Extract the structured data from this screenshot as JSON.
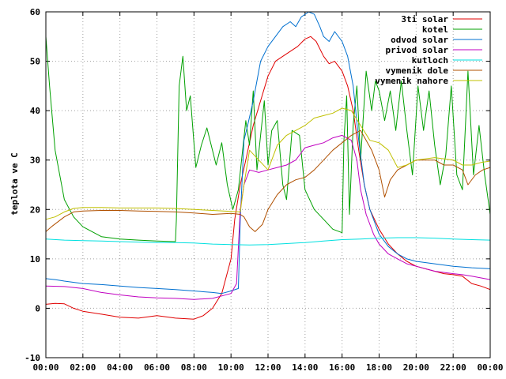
{
  "chart_data": {
    "type": "line",
    "title": "",
    "xlabel": "",
    "ylabel": "teplota ve C",
    "xlim": [
      0,
      24
    ],
    "ylim": [
      -10,
      60
    ],
    "x_ticks": [
      0,
      2,
      4,
      6,
      8,
      10,
      12,
      14,
      16,
      18,
      20,
      22,
      24
    ],
    "x_tick_labels": [
      "00:00",
      "02:00",
      "04:00",
      "06:00",
      "08:00",
      "10:00",
      "12:00",
      "14:00",
      "16:00",
      "18:00",
      "20:00",
      "22:00",
      "00:00"
    ],
    "y_ticks": [
      -10,
      0,
      10,
      20,
      30,
      40,
      50,
      60
    ],
    "y_tick_labels": [
      "-10",
      "0",
      "10",
      "20",
      "30",
      "40",
      "50",
      "60"
    ],
    "grid": true,
    "legend_position": "top-right",
    "series": [
      {
        "name": "3ti solar",
        "color": "#e00000",
        "points": [
          [
            0,
            0.8
          ],
          [
            0.5,
            1
          ],
          [
            1,
            0.9
          ],
          [
            1.5,
            0
          ],
          [
            2,
            -0.6
          ],
          [
            3,
            -1.2
          ],
          [
            4,
            -1.8
          ],
          [
            5,
            -2
          ],
          [
            6,
            -1.5
          ],
          [
            7,
            -2
          ],
          [
            8,
            -2.2
          ],
          [
            8.5,
            -1.5
          ],
          [
            9,
            0
          ],
          [
            9.5,
            3
          ],
          [
            10,
            10
          ],
          [
            10.2,
            18
          ],
          [
            10.5,
            25
          ],
          [
            10.8,
            30
          ],
          [
            11.2,
            37
          ],
          [
            11.6,
            42
          ],
          [
            12,
            47
          ],
          [
            12.4,
            50
          ],
          [
            12.8,
            51
          ],
          [
            13.2,
            52
          ],
          [
            13.6,
            53
          ],
          [
            14,
            54.5
          ],
          [
            14.3,
            55
          ],
          [
            14.6,
            54
          ],
          [
            15,
            51
          ],
          [
            15.3,
            49.5
          ],
          [
            15.6,
            50
          ],
          [
            16,
            48
          ],
          [
            16.3,
            45
          ],
          [
            16.6,
            40
          ],
          [
            16.9,
            32
          ],
          [
            17.2,
            25
          ],
          [
            17.5,
            20
          ],
          [
            18,
            16
          ],
          [
            18.5,
            13
          ],
          [
            19,
            11
          ],
          [
            19.5,
            9.5
          ],
          [
            20,
            8.5
          ],
          [
            20.5,
            8
          ],
          [
            21,
            7.5
          ],
          [
            21.5,
            7
          ],
          [
            22,
            6.8
          ],
          [
            22.5,
            6.5
          ],
          [
            23,
            5
          ],
          [
            23.5,
            4.5
          ],
          [
            24,
            3.8
          ]
        ]
      },
      {
        "name": "kotel",
        "color": "#00a000",
        "points": [
          [
            0,
            55
          ],
          [
            0.2,
            45
          ],
          [
            0.5,
            32
          ],
          [
            1,
            22
          ],
          [
            1.5,
            18.5
          ],
          [
            2,
            16.5
          ],
          [
            3,
            14.5
          ],
          [
            4,
            14
          ],
          [
            5,
            13.8
          ],
          [
            6,
            13.6
          ],
          [
            7,
            13.5
          ],
          [
            7.05,
            18
          ],
          [
            7.2,
            45
          ],
          [
            7.4,
            51
          ],
          [
            7.6,
            40
          ],
          [
            7.8,
            43
          ],
          [
            8.1,
            28.5
          ],
          [
            8.4,
            33
          ],
          [
            8.7,
            36.5
          ],
          [
            9.2,
            29
          ],
          [
            9.5,
            33.5
          ],
          [
            9.8,
            25
          ],
          [
            10.1,
            20
          ],
          [
            10.4,
            24
          ],
          [
            10.8,
            38
          ],
          [
            11,
            33
          ],
          [
            11.2,
            44
          ],
          [
            11.4,
            28
          ],
          [
            11.6,
            35
          ],
          [
            11.8,
            42
          ],
          [
            12,
            29
          ],
          [
            12.2,
            36
          ],
          [
            12.5,
            38
          ],
          [
            12.8,
            25
          ],
          [
            13,
            22
          ],
          [
            13.3,
            36
          ],
          [
            13.7,
            35
          ],
          [
            14,
            24
          ],
          [
            14.5,
            20
          ],
          [
            15,
            18
          ],
          [
            15.5,
            16
          ],
          [
            16,
            15.3
          ],
          [
            16.1,
            34
          ],
          [
            16.25,
            43
          ],
          [
            16.4,
            19
          ],
          [
            16.6,
            37
          ],
          [
            16.8,
            45
          ],
          [
            17,
            30
          ],
          [
            17.3,
            48
          ],
          [
            17.6,
            40
          ],
          [
            17.8,
            46
          ],
          [
            18,
            44
          ],
          [
            18.3,
            38
          ],
          [
            18.6,
            44
          ],
          [
            18.9,
            36
          ],
          [
            19.2,
            46
          ],
          [
            19.5,
            36
          ],
          [
            19.8,
            27
          ],
          [
            20.1,
            45
          ],
          [
            20.4,
            36
          ],
          [
            20.7,
            44
          ],
          [
            21,
            33
          ],
          [
            21.3,
            25
          ],
          [
            21.6,
            31
          ],
          [
            21.9,
            45
          ],
          [
            22.2,
            27
          ],
          [
            22.5,
            24
          ],
          [
            22.8,
            48
          ],
          [
            23.1,
            27
          ],
          [
            23.4,
            37
          ],
          [
            23.7,
            27
          ],
          [
            24,
            19
          ]
        ]
      },
      {
        "name": "odvod solar",
        "color": "#0070d0",
        "points": [
          [
            0,
            6
          ],
          [
            0.5,
            5.8
          ],
          [
            1,
            5.5
          ],
          [
            2,
            5
          ],
          [
            3,
            4.8
          ],
          [
            4,
            4.5
          ],
          [
            5,
            4.2
          ],
          [
            6,
            4
          ],
          [
            7,
            3.8
          ],
          [
            8,
            3.5
          ],
          [
            9,
            3.2
          ],
          [
            9.5,
            3
          ],
          [
            10,
            3.5
          ],
          [
            10.4,
            4
          ],
          [
            10.5,
            18
          ],
          [
            10.7,
            34
          ],
          [
            10.9,
            37
          ],
          [
            11.2,
            42
          ],
          [
            11.6,
            50
          ],
          [
            12,
            53
          ],
          [
            12.4,
            55
          ],
          [
            12.8,
            57
          ],
          [
            13.2,
            58
          ],
          [
            13.5,
            57
          ],
          [
            13.8,
            59
          ],
          [
            14.2,
            60
          ],
          [
            14.5,
            59.5
          ],
          [
            14.8,
            57
          ],
          [
            15,
            55
          ],
          [
            15.3,
            54
          ],
          [
            15.6,
            56
          ],
          [
            16,
            54
          ],
          [
            16.3,
            51
          ],
          [
            16.6,
            45
          ],
          [
            16.9,
            34
          ],
          [
            17.2,
            25
          ],
          [
            17.5,
            20
          ],
          [
            18,
            15
          ],
          [
            18.5,
            12.5
          ],
          [
            19,
            11
          ],
          [
            19.5,
            10
          ],
          [
            20,
            9.5
          ],
          [
            21,
            9
          ],
          [
            22,
            8.5
          ],
          [
            23,
            8.2
          ],
          [
            24,
            8
          ]
        ]
      },
      {
        "name": "privod solar",
        "color": "#c000c0",
        "points": [
          [
            0,
            4.5
          ],
          [
            1,
            4.4
          ],
          [
            2,
            4
          ],
          [
            3,
            3.2
          ],
          [
            4,
            2.7
          ],
          [
            5,
            2.3
          ],
          [
            6,
            2.1
          ],
          [
            7,
            2
          ],
          [
            8,
            1.8
          ],
          [
            9,
            2
          ],
          [
            9.5,
            2.5
          ],
          [
            10,
            3
          ],
          [
            10.3,
            5
          ],
          [
            10.5,
            20
          ],
          [
            10.7,
            25
          ],
          [
            11,
            28
          ],
          [
            11.5,
            27.5
          ],
          [
            12,
            28
          ],
          [
            12.5,
            28.5
          ],
          [
            13,
            29
          ],
          [
            13.5,
            30
          ],
          [
            14,
            32.5
          ],
          [
            14.5,
            33
          ],
          [
            15,
            33.5
          ],
          [
            15.5,
            34.5
          ],
          [
            16,
            35
          ],
          [
            16.5,
            34
          ],
          [
            16.8,
            30
          ],
          [
            17,
            24
          ],
          [
            17.3,
            19
          ],
          [
            17.7,
            15
          ],
          [
            18,
            13
          ],
          [
            18.5,
            11
          ],
          [
            19,
            10
          ],
          [
            19.5,
            9
          ],
          [
            20,
            8.5
          ],
          [
            21,
            7.5
          ],
          [
            22,
            7
          ],
          [
            22.5,
            6.8
          ],
          [
            23,
            6.5
          ],
          [
            24,
            5.8
          ]
        ]
      },
      {
        "name": "kutloch",
        "color": "#00e0e0",
        "points": [
          [
            0,
            14
          ],
          [
            1,
            13.8
          ],
          [
            2,
            13.7
          ],
          [
            3,
            13.6
          ],
          [
            4,
            13.5
          ],
          [
            5,
            13.4
          ],
          [
            6,
            13.3
          ],
          [
            7,
            13.3
          ],
          [
            8,
            13.2
          ],
          [
            9,
            13
          ],
          [
            10,
            12.9
          ],
          [
            11,
            12.8
          ],
          [
            12,
            12.9
          ],
          [
            13,
            13.1
          ],
          [
            14,
            13.3
          ],
          [
            15,
            13.6
          ],
          [
            16,
            13.9
          ],
          [
            17,
            14
          ],
          [
            18,
            14.2
          ],
          [
            19,
            14.3
          ],
          [
            20,
            14.3
          ],
          [
            21,
            14.2
          ],
          [
            22,
            14
          ],
          [
            23,
            13.9
          ],
          [
            24,
            13.8
          ]
        ]
      },
      {
        "name": "vymenik dole",
        "color": "#b05000",
        "points": [
          [
            0,
            15.5
          ],
          [
            0.3,
            16.5
          ],
          [
            1,
            18.5
          ],
          [
            1.5,
            19.5
          ],
          [
            2,
            19.7
          ],
          [
            3,
            19.8
          ],
          [
            4,
            19.8
          ],
          [
            5,
            19.7
          ],
          [
            6,
            19.6
          ],
          [
            7,
            19.5
          ],
          [
            8,
            19.3
          ],
          [
            9,
            19
          ],
          [
            10,
            19.2
          ],
          [
            10.5,
            19
          ],
          [
            10.7,
            18.5
          ],
          [
            11,
            16.5
          ],
          [
            11.3,
            15.5
          ],
          [
            11.7,
            17
          ],
          [
            12,
            20
          ],
          [
            12.5,
            23
          ],
          [
            13,
            25
          ],
          [
            13.5,
            26
          ],
          [
            14,
            26.5
          ],
          [
            14.5,
            28
          ],
          [
            15,
            30
          ],
          [
            15.5,
            32
          ],
          [
            16,
            33.5
          ],
          [
            16.5,
            35
          ],
          [
            17,
            36
          ],
          [
            17.3,
            34
          ],
          [
            17.6,
            32
          ],
          [
            18,
            28
          ],
          [
            18.3,
            22.5
          ],
          [
            18.6,
            26
          ],
          [
            19,
            28
          ],
          [
            19.5,
            29
          ],
          [
            20,
            30
          ],
          [
            21,
            30
          ],
          [
            21.5,
            29
          ],
          [
            22,
            29
          ],
          [
            22.5,
            28
          ],
          [
            22.8,
            25
          ],
          [
            23.2,
            27
          ],
          [
            23.6,
            28
          ],
          [
            24,
            28.5
          ]
        ]
      },
      {
        "name": "vymenik nahore",
        "color": "#c0c000",
        "points": [
          [
            0,
            18
          ],
          [
            0.5,
            18.5
          ],
          [
            1,
            19.5
          ],
          [
            1.5,
            20.2
          ],
          [
            2,
            20.4
          ],
          [
            3,
            20.4
          ],
          [
            4,
            20.3
          ],
          [
            5,
            20.3
          ],
          [
            6,
            20.3
          ],
          [
            7,
            20.2
          ],
          [
            8,
            20
          ],
          [
            9,
            19.8
          ],
          [
            10,
            19.6
          ],
          [
            10.5,
            19.5
          ],
          [
            10.7,
            25
          ],
          [
            11,
            32
          ],
          [
            11.5,
            30
          ],
          [
            12,
            28
          ],
          [
            12.5,
            33
          ],
          [
            13,
            35
          ],
          [
            13.5,
            36
          ],
          [
            14,
            37
          ],
          [
            14.5,
            38.5
          ],
          [
            15,
            39
          ],
          [
            15.5,
            39.5
          ],
          [
            16,
            40.5
          ],
          [
            16.5,
            40
          ],
          [
            17,
            37
          ],
          [
            17.5,
            34
          ],
          [
            18,
            33.5
          ],
          [
            18.5,
            32
          ],
          [
            19,
            28.5
          ],
          [
            19.5,
            29
          ],
          [
            20,
            30
          ],
          [
            21,
            30.5
          ],
          [
            22,
            30
          ],
          [
            22.5,
            29
          ],
          [
            23,
            29
          ],
          [
            23.5,
            29.5
          ],
          [
            24,
            29.8
          ]
        ]
      }
    ]
  }
}
